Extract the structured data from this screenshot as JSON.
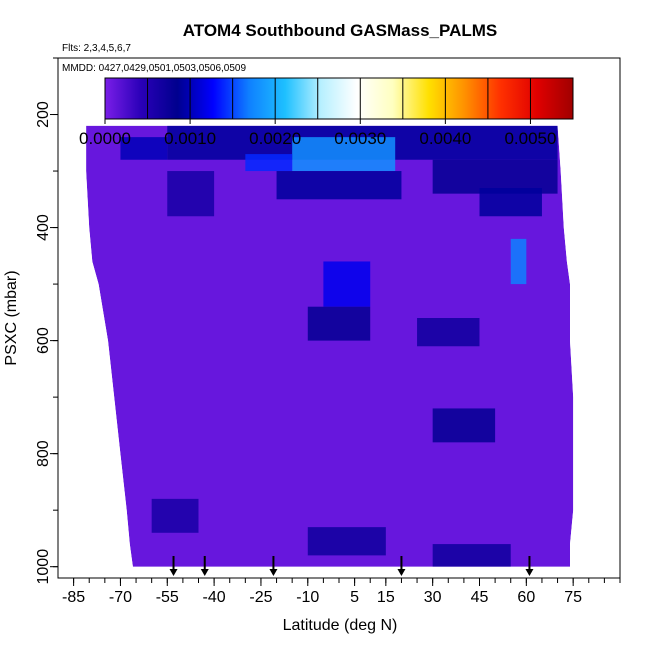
{
  "chart_data": {
    "type": "heatmap",
    "title": "ATOM4 Southbound GASMass_PALMS",
    "subtitle_flights": "Flts: 2,3,4,5,6,7",
    "subtitle_dates": "MMDD: 0427,0429,0501,0503,0506,0509",
    "xlabel": "Latitude (deg N)",
    "ylabel": "PSXC (mbar)",
    "xlim": [
      -90,
      90
    ],
    "ylim": [
      1020,
      100
    ],
    "x_ticks": [
      -85,
      -70,
      -55,
      -40,
      -25,
      -10,
      5,
      15,
      30,
      45,
      60,
      75
    ],
    "x_tick_labels": [
      "-85",
      "-70",
      "-55",
      "-40",
      "-25",
      "-10",
      "5",
      "15",
      "30",
      "45",
      "60",
      "75"
    ],
    "y_ticks": [
      200,
      400,
      600,
      800,
      1000
    ],
    "y_tick_labels": [
      "200",
      "400",
      "600",
      "800",
      "1000"
    ],
    "colorbar": {
      "min": 0.0,
      "max": 0.0055,
      "ticks": [
        0.0,
        0.001,
        0.002,
        0.003,
        0.004,
        0.005
      ],
      "tick_labels": [
        "0.0000",
        "0.0010",
        "0.0020",
        "0.0030",
        "0.0040",
        "0.0050"
      ],
      "colors": [
        "#7a1ee8",
        "#2a00b8",
        "#00008e",
        "#0000ff",
        "#0f80ff",
        "#1ec0ff",
        "#b8f0ff",
        "#ffffff",
        "#ffffc0",
        "#ffe000",
        "#ff9000",
        "#ff3000",
        "#e00000",
        "#a00000"
      ]
    },
    "background_value": 0.0001,
    "profile_arrows_lat": [
      -53,
      -43,
      -21,
      20,
      61
    ],
    "coverage_envelope": {
      "pressure": [
        220,
        300,
        400,
        460,
        500,
        600,
        700,
        800,
        900,
        960,
        1000
      ],
      "lat_south": [
        -81,
        -81,
        -80,
        -79,
        -77,
        -74,
        -72,
        -70,
        -68,
        -67,
        -66
      ],
      "lat_north": [
        70,
        71,
        72,
        73,
        74,
        74,
        75,
        75,
        75,
        74,
        74
      ]
    },
    "enhancements": [
      {
        "lat": [
          -55,
          70
        ],
        "p": [
          220,
          280
        ],
        "value": 0.0009
      },
      {
        "lat": [
          -15,
          18
        ],
        "p": [
          240,
          300
        ],
        "value": 0.0018
      },
      {
        "lat": [
          -30,
          -15
        ],
        "p": [
          270,
          300
        ],
        "value": 0.0014
      },
      {
        "lat": [
          -70,
          -55
        ],
        "p": [
          240,
          280
        ],
        "value": 0.001
      },
      {
        "lat": [
          -20,
          20
        ],
        "p": [
          300,
          350
        ],
        "value": 0.0009
      },
      {
        "lat": [
          30,
          70
        ],
        "p": [
          280,
          340
        ],
        "value": 0.0008
      },
      {
        "lat": [
          45,
          65
        ],
        "p": [
          330,
          380
        ],
        "value": 0.0009
      },
      {
        "lat": [
          55,
          60
        ],
        "p": [
          420,
          500
        ],
        "value": 0.0017
      },
      {
        "lat": [
          -5,
          10
        ],
        "p": [
          460,
          540
        ],
        "value": 0.0012
      },
      {
        "lat": [
          -55,
          -40
        ],
        "p": [
          300,
          380
        ],
        "value": 0.0006
      },
      {
        "lat": [
          -10,
          10
        ],
        "p": [
          540,
          600
        ],
        "value": 0.0008
      },
      {
        "lat": [
          25,
          45
        ],
        "p": [
          560,
          610
        ],
        "value": 0.0007
      },
      {
        "lat": [
          30,
          50
        ],
        "p": [
          720,
          780
        ],
        "value": 0.0008
      },
      {
        "lat": [
          -60,
          -45
        ],
        "p": [
          880,
          940
        ],
        "value": 0.0006
      },
      {
        "lat": [
          -10,
          15
        ],
        "p": [
          930,
          980
        ],
        "value": 0.0007
      },
      {
        "lat": [
          30,
          55
        ],
        "p": [
          960,
          1000
        ],
        "value": 0.0007
      }
    ]
  }
}
